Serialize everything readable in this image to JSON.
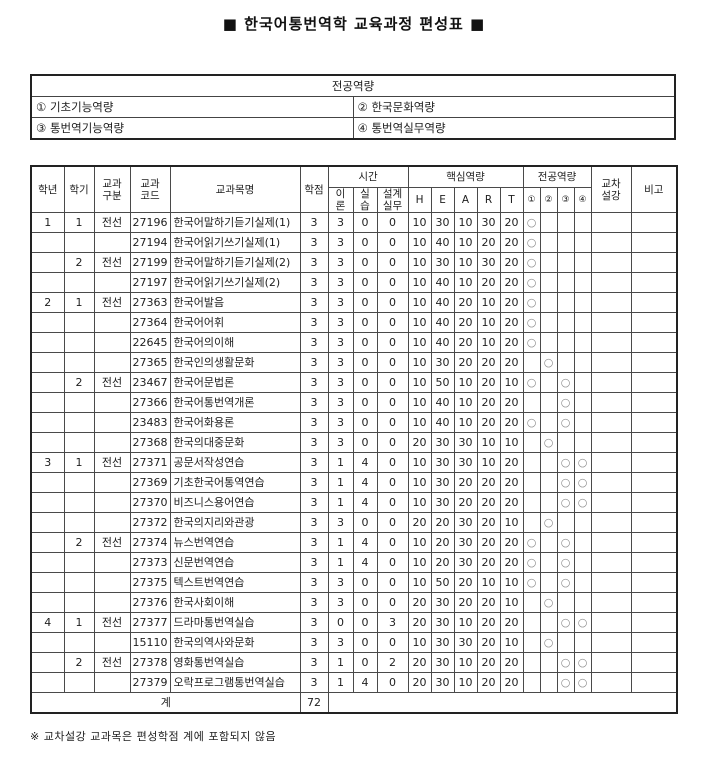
{
  "title": "■  한국어통번역학  교육과정  편성표  ■",
  "competency_table": {
    "header": "전공역량",
    "cells": [
      [
        "①  기초기능역량",
        "②  한국문화역량"
      ],
      [
        "③  통번역기능역량",
        "④  통번역실무역량"
      ]
    ]
  },
  "main_table": {
    "headers": {
      "year": "학년",
      "semester": "학기",
      "category": "교과\n구분",
      "code": "교과\n코드",
      "course": "교과목명",
      "credits": "학점",
      "hours_group": "시간",
      "theory": "이\n론",
      "practice": "실\n습",
      "design": "설계\n실무",
      "core_group": "핵심역량",
      "h": "H",
      "e": "E",
      "a": "A",
      "r": "R",
      "t": "T",
      "major_group": "전공역량",
      "m1": "①",
      "m2": "②",
      "m3": "③",
      "m4": "④",
      "cross": "교차\n설강",
      "note": "비고"
    },
    "rows": [
      [
        "1",
        "1",
        "전선",
        "27196",
        "한국어말하기듣기실제(1)",
        "3",
        "3",
        "0",
        "0",
        "10",
        "30",
        "10",
        "30",
        "20",
        "○",
        "",
        "",
        "",
        "",
        ""
      ],
      [
        "",
        "",
        "",
        "27194",
        "한국어읽기쓰기실제(1)",
        "3",
        "3",
        "0",
        "0",
        "10",
        "40",
        "10",
        "20",
        "20",
        "○",
        "",
        "",
        "",
        "",
        ""
      ],
      [
        "",
        "2",
        "전선",
        "27199",
        "한국어말하기듣기실제(2)",
        "3",
        "3",
        "0",
        "0",
        "10",
        "30",
        "10",
        "30",
        "20",
        "○",
        "",
        "",
        "",
        "",
        ""
      ],
      [
        "",
        "",
        "",
        "27197",
        "한국어읽기쓰기실제(2)",
        "3",
        "3",
        "0",
        "0",
        "10",
        "40",
        "10",
        "20",
        "20",
        "○",
        "",
        "",
        "",
        "",
        ""
      ],
      [
        "2",
        "1",
        "전선",
        "27363",
        "한국어발음",
        "3",
        "3",
        "0",
        "0",
        "10",
        "40",
        "20",
        "10",
        "20",
        "○",
        "",
        "",
        "",
        "",
        ""
      ],
      [
        "",
        "",
        "",
        "27364",
        "한국어어휘",
        "3",
        "3",
        "0",
        "0",
        "10",
        "40",
        "20",
        "10",
        "20",
        "○",
        "",
        "",
        "",
        "",
        ""
      ],
      [
        "",
        "",
        "",
        "22645",
        "한국어의이해",
        "3",
        "3",
        "0",
        "0",
        "10",
        "40",
        "20",
        "10",
        "20",
        "○",
        "",
        "",
        "",
        "",
        ""
      ],
      [
        "",
        "",
        "",
        "27365",
        "한국인의생활문화",
        "3",
        "3",
        "0",
        "0",
        "10",
        "30",
        "20",
        "20",
        "20",
        "",
        "○",
        "",
        "",
        "",
        ""
      ],
      [
        "",
        "2",
        "전선",
        "23467",
        "한국어문법론",
        "3",
        "3",
        "0",
        "0",
        "10",
        "50",
        "10",
        "20",
        "10",
        "○",
        "",
        "○",
        "",
        "",
        ""
      ],
      [
        "",
        "",
        "",
        "27366",
        "한국어통번역개론",
        "3",
        "3",
        "0",
        "0",
        "10",
        "40",
        "10",
        "20",
        "20",
        "",
        "",
        "○",
        "",
        "",
        ""
      ],
      [
        "",
        "",
        "",
        "23483",
        "한국어화용론",
        "3",
        "3",
        "0",
        "0",
        "10",
        "40",
        "10",
        "20",
        "20",
        "○",
        "",
        "○",
        "",
        "",
        ""
      ],
      [
        "",
        "",
        "",
        "27368",
        "한국의대중문화",
        "3",
        "3",
        "0",
        "0",
        "20",
        "30",
        "30",
        "10",
        "10",
        "",
        "○",
        "",
        "",
        "",
        ""
      ],
      [
        "3",
        "1",
        "전선",
        "27371",
        "공문서작성연습",
        "3",
        "1",
        "4",
        "0",
        "10",
        "30",
        "30",
        "10",
        "20",
        "",
        "",
        "○",
        "○",
        "",
        ""
      ],
      [
        "",
        "",
        "",
        "27369",
        "기초한국어통역연습",
        "3",
        "1",
        "4",
        "0",
        "10",
        "30",
        "20",
        "20",
        "20",
        "",
        "",
        "○",
        "○",
        "",
        ""
      ],
      [
        "",
        "",
        "",
        "27370",
        "비즈니스용어연습",
        "3",
        "1",
        "4",
        "0",
        "10",
        "30",
        "20",
        "20",
        "20",
        "",
        "",
        "○",
        "○",
        "",
        ""
      ],
      [
        "",
        "",
        "",
        "27372",
        "한국의지리와관광",
        "3",
        "3",
        "0",
        "0",
        "20",
        "20",
        "30",
        "20",
        "10",
        "",
        "○",
        "",
        "",
        "",
        ""
      ],
      [
        "",
        "2",
        "전선",
        "27374",
        "뉴스번역연습",
        "3",
        "1",
        "4",
        "0",
        "10",
        "20",
        "30",
        "20",
        "20",
        "○",
        "",
        "○",
        "",
        "",
        ""
      ],
      [
        "",
        "",
        "",
        "27373",
        "신문번역연습",
        "3",
        "1",
        "4",
        "0",
        "10",
        "20",
        "30",
        "20",
        "20",
        "○",
        "",
        "○",
        "",
        "",
        ""
      ],
      [
        "",
        "",
        "",
        "27375",
        "텍스트번역연습",
        "3",
        "3",
        "0",
        "0",
        "10",
        "50",
        "20",
        "10",
        "10",
        "○",
        "",
        "○",
        "",
        "",
        ""
      ],
      [
        "",
        "",
        "",
        "27376",
        "한국사회이해",
        "3",
        "3",
        "0",
        "0",
        "20",
        "30",
        "20",
        "20",
        "10",
        "",
        "○",
        "",
        "",
        "",
        ""
      ],
      [
        "4",
        "1",
        "전선",
        "27377",
        "드라마통번역실습",
        "3",
        "0",
        "0",
        "3",
        "20",
        "30",
        "10",
        "20",
        "20",
        "",
        "",
        "○",
        "○",
        "",
        ""
      ],
      [
        "",
        "",
        "",
        "15110",
        "한국의역사와문화",
        "3",
        "3",
        "0",
        "0",
        "10",
        "30",
        "30",
        "20",
        "10",
        "",
        "○",
        "",
        "",
        "",
        ""
      ],
      [
        "",
        "2",
        "전선",
        "27378",
        "영화통번역실습",
        "3",
        "1",
        "0",
        "2",
        "20",
        "30",
        "10",
        "20",
        "20",
        "",
        "",
        "○",
        "○",
        "",
        ""
      ],
      [
        "",
        "",
        "",
        "27379",
        "오락프로그램통번역실습",
        "3",
        "1",
        "4",
        "0",
        "20",
        "30",
        "10",
        "20",
        "20",
        "",
        "",
        "○",
        "○",
        "",
        ""
      ]
    ],
    "total_row": {
      "label": "계",
      "credits": "72"
    }
  },
  "footnote": "※  교차설강  교과목은  편성학점  계에  포함되지  않음"
}
